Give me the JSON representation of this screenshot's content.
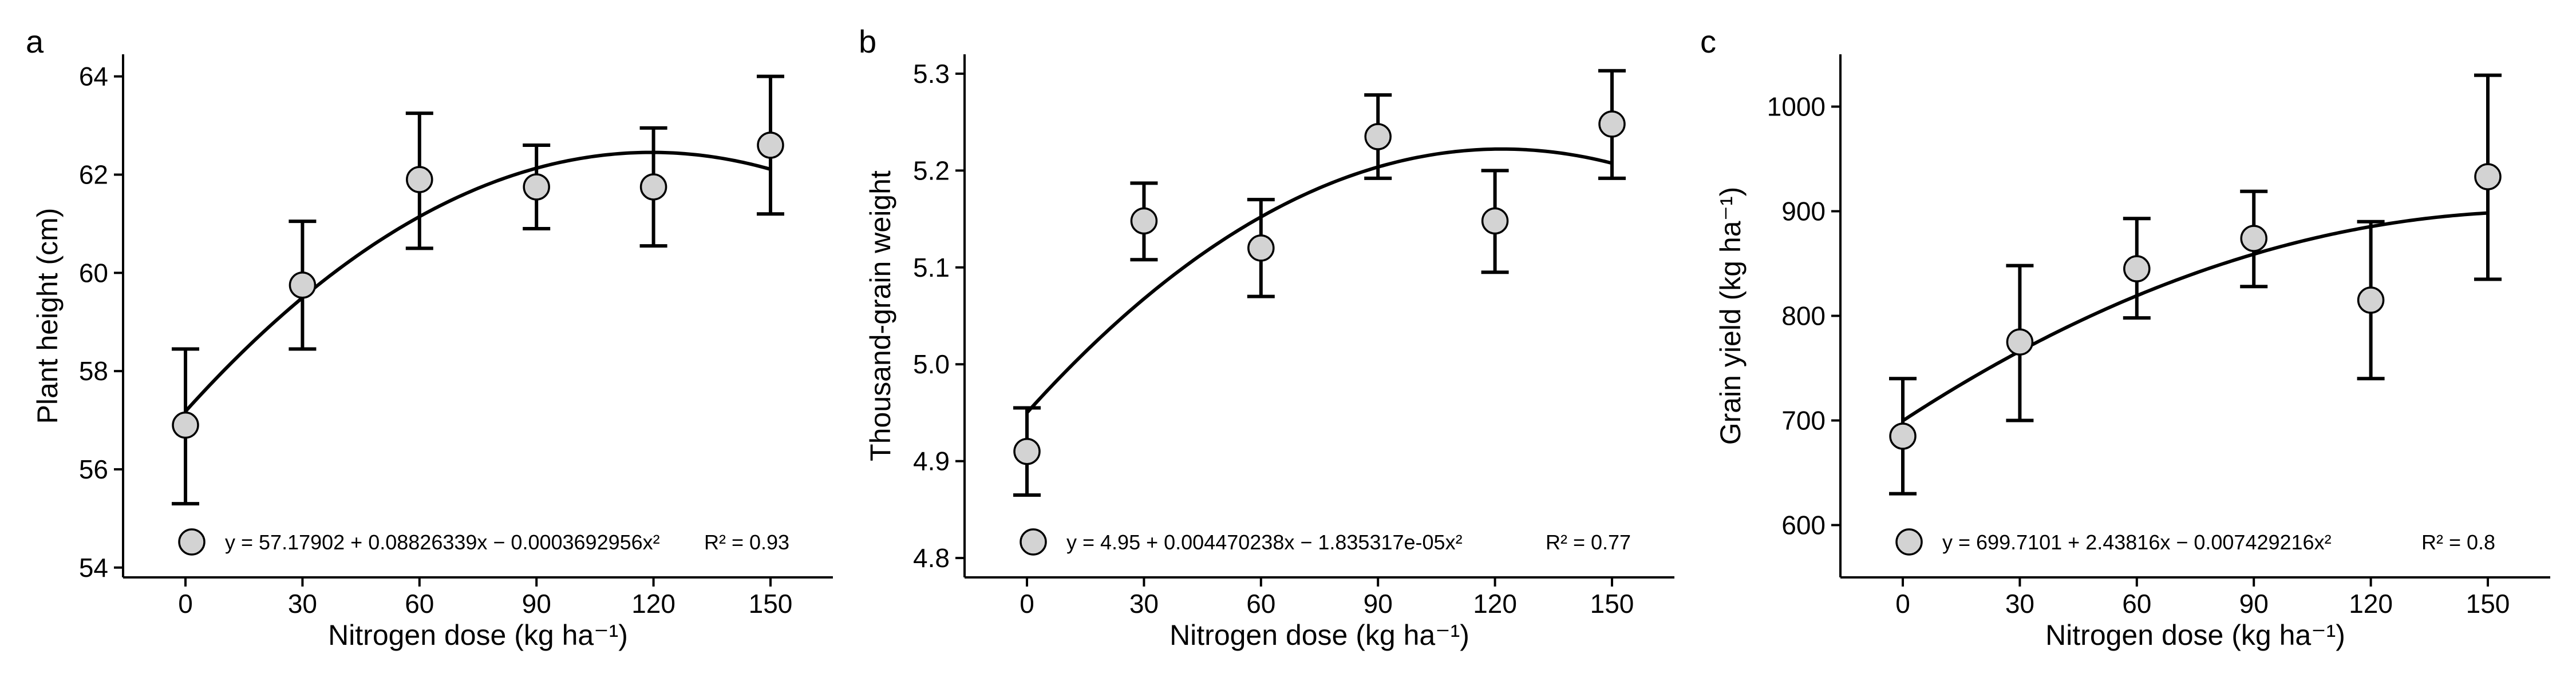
{
  "colors": {
    "point_fill": "#d3d3d3",
    "stroke": "#000000",
    "background": "#ffffff"
  },
  "chart_data": [
    {
      "type": "scatter",
      "panel_label": "a",
      "xlabel": "Nitrogen dose (kg ha⁻¹)",
      "ylabel": "Plant height (cm)",
      "x": [
        0,
        30,
        60,
        90,
        120,
        150
      ],
      "y": [
        56.9,
        59.75,
        61.9,
        61.75,
        61.75,
        62.6
      ],
      "error_low": [
        55.3,
        58.45,
        60.5,
        60.9,
        60.55,
        61.2
      ],
      "error_high": [
        58.45,
        61.05,
        63.25,
        62.6,
        62.95,
        64.0
      ],
      "xticks": [
        "0",
        "30",
        "60",
        "90",
        "120",
        "150"
      ],
      "yticks": [
        "54",
        "56",
        "58",
        "60",
        "62",
        "64"
      ],
      "ylim": [
        53.8,
        64.45
      ],
      "fit": {
        "c0": 57.17902,
        "c1": 0.08826339,
        "c2": -0.0003692956
      },
      "equation": "y = 57.17902 + 0.08826339x − 0.0003692956x²",
      "r2": "R² = 0.93"
    },
    {
      "type": "scatter",
      "panel_label": "b",
      "xlabel": "Nitrogen dose (kg ha⁻¹)",
      "ylabel": "Thousand-grain weight",
      "x": [
        0,
        30,
        60,
        90,
        120,
        150
      ],
      "y": [
        4.91,
        5.148,
        5.12,
        5.235,
        5.148,
        5.248
      ],
      "error_low": [
        4.865,
        5.108,
        5.07,
        5.192,
        5.095,
        5.192
      ],
      "error_high": [
        4.955,
        5.187,
        5.17,
        5.278,
        5.2,
        5.303
      ],
      "xticks": [
        "0",
        "30",
        "60",
        "90",
        "120",
        "150"
      ],
      "yticks": [
        "4.8",
        "4.9",
        "5.0",
        "5.1",
        "5.2",
        "5.3"
      ],
      "ylim": [
        4.78,
        5.32
      ],
      "fit": {
        "c0": 4.95,
        "c1": 0.004470238,
        "c2": -1.835317e-05
      },
      "equation": "y = 4.95 + 0.004470238x − 1.835317e-05x²",
      "r2": "R² = 0.77"
    },
    {
      "type": "scatter",
      "panel_label": "c",
      "xlabel": "Nitrogen dose (kg ha⁻¹)",
      "ylabel": "Grain yield (kg ha⁻¹)",
      "x": [
        0,
        30,
        60,
        90,
        120,
        150
      ],
      "y": [
        685,
        775,
        845,
        874,
        815,
        933
      ],
      "error_low": [
        630,
        700,
        798,
        828,
        740,
        835
      ],
      "error_high": [
        740,
        848,
        893,
        919,
        890,
        1030
      ],
      "xticks": [
        "0",
        "30",
        "60",
        "90",
        "120",
        "150"
      ],
      "yticks": [
        "600",
        "700",
        "800",
        "900",
        "1000"
      ],
      "ylim": [
        550,
        1050
      ],
      "fit": {
        "c0": 699.7101,
        "c1": 2.43816,
        "c2": -0.007429216
      },
      "equation": "y = 699.7101 + 2.43816x − 0.007429216x²",
      "r2": "R² = 0.8"
    }
  ]
}
